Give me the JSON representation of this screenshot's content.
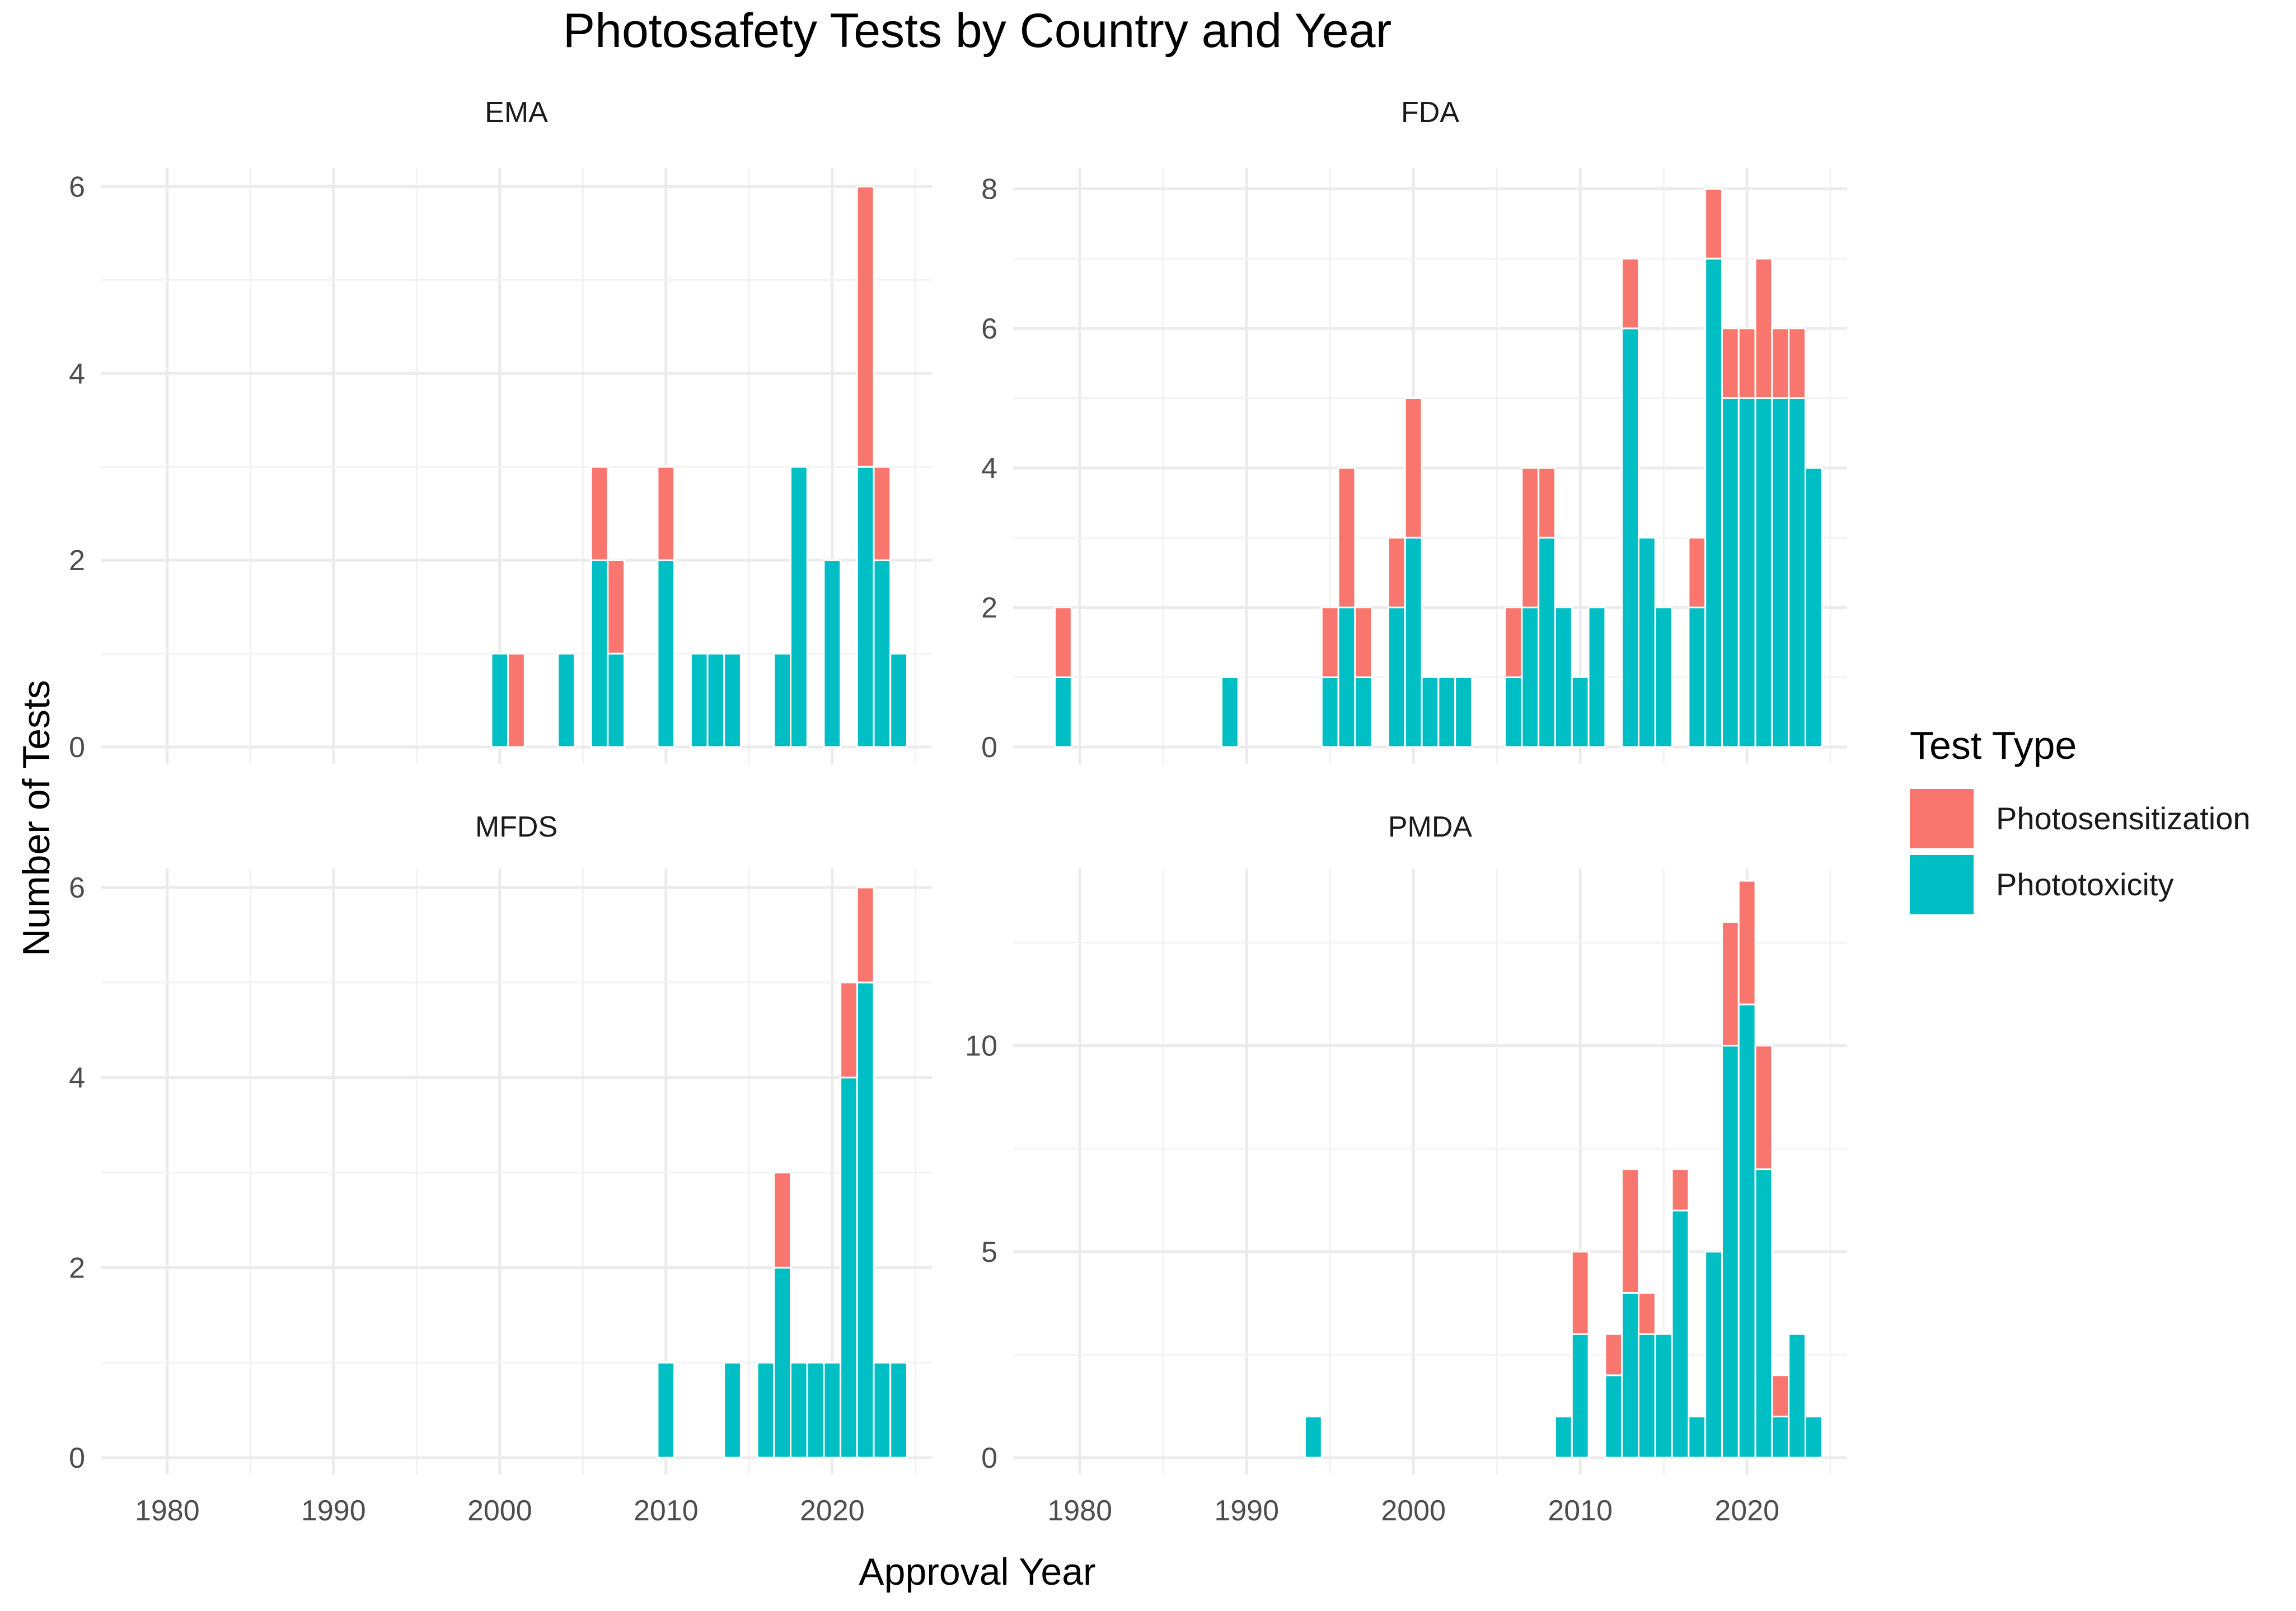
{
  "chart_data": {
    "type": "bar",
    "title": "Photosafety Tests by Country and Year",
    "xlabel": "Approval Year",
    "ylabel": "Number of Tests",
    "x_ticks": [
      1980,
      1990,
      2000,
      2010,
      2020
    ],
    "legend": {
      "title": "Test Type",
      "position": "right",
      "items": [
        {
          "label": "Photosensitization",
          "color": "#F8766D"
        },
        {
          "label": "Phototoxicity",
          "color": "#00BFC4"
        }
      ]
    },
    "grid": true,
    "xlim": [
      1976,
      2026
    ],
    "panels": [
      {
        "name": "EMA",
        "ylim": [
          0,
          6.2
        ],
        "y_ticks": [
          0,
          2,
          4,
          6
        ],
        "bars": [
          {
            "year": 2000,
            "phototoxicity": 1,
            "photosensitization": 0
          },
          {
            "year": 2001,
            "phototoxicity": 0,
            "photosensitization": 1
          },
          {
            "year": 2004,
            "phototoxicity": 1,
            "photosensitization": 0
          },
          {
            "year": 2006,
            "phototoxicity": 2,
            "photosensitization": 1
          },
          {
            "year": 2007,
            "phototoxicity": 1,
            "photosensitization": 1
          },
          {
            "year": 2010,
            "phototoxicity": 2,
            "photosensitization": 1
          },
          {
            "year": 2012,
            "phototoxicity": 1,
            "photosensitization": 0
          },
          {
            "year": 2013,
            "phototoxicity": 1,
            "photosensitization": 0
          },
          {
            "year": 2014,
            "phototoxicity": 1,
            "photosensitization": 0
          },
          {
            "year": 2017,
            "phototoxicity": 1,
            "photosensitization": 0
          },
          {
            "year": 2018,
            "phototoxicity": 3,
            "photosensitization": 0
          },
          {
            "year": 2020,
            "phototoxicity": 2,
            "photosensitization": 0
          },
          {
            "year": 2022,
            "phototoxicity": 3,
            "photosensitization": 3
          },
          {
            "year": 2023,
            "phototoxicity": 2,
            "photosensitization": 1
          },
          {
            "year": 2024,
            "phototoxicity": 1,
            "photosensitization": 0
          }
        ]
      },
      {
        "name": "FDA",
        "ylim": [
          0,
          8.3
        ],
        "y_ticks": [
          0,
          2,
          4,
          6,
          8
        ],
        "bars": [
          {
            "year": 1979,
            "phototoxicity": 1,
            "photosensitization": 1
          },
          {
            "year": 1989,
            "phototoxicity": 1,
            "photosensitization": 0
          },
          {
            "year": 1995,
            "phototoxicity": 1,
            "photosensitization": 1
          },
          {
            "year": 1996,
            "phototoxicity": 2,
            "photosensitization": 2
          },
          {
            "year": 1997,
            "phototoxicity": 1,
            "photosensitization": 1
          },
          {
            "year": 1999,
            "phototoxicity": 2,
            "photosensitization": 1
          },
          {
            "year": 2000,
            "phototoxicity": 3,
            "photosensitization": 2
          },
          {
            "year": 2001,
            "phototoxicity": 1,
            "photosensitization": 0
          },
          {
            "year": 2002,
            "phototoxicity": 1,
            "photosensitization": 0
          },
          {
            "year": 2003,
            "phototoxicity": 1,
            "photosensitization": 0
          },
          {
            "year": 2006,
            "phototoxicity": 1,
            "photosensitization": 1
          },
          {
            "year": 2007,
            "phototoxicity": 2,
            "photosensitization": 2
          },
          {
            "year": 2008,
            "phototoxicity": 3,
            "photosensitization": 1
          },
          {
            "year": 2009,
            "phototoxicity": 2,
            "photosensitization": 0
          },
          {
            "year": 2010,
            "phototoxicity": 1,
            "photosensitization": 0
          },
          {
            "year": 2011,
            "phototoxicity": 2,
            "photosensitization": 0
          },
          {
            "year": 2013,
            "phototoxicity": 6,
            "photosensitization": 1
          },
          {
            "year": 2014,
            "phototoxicity": 3,
            "photosensitization": 0
          },
          {
            "year": 2015,
            "phototoxicity": 2,
            "photosensitization": 0
          },
          {
            "year": 2017,
            "phototoxicity": 2,
            "photosensitization": 1
          },
          {
            "year": 2018,
            "phototoxicity": 7,
            "photosensitization": 1
          },
          {
            "year": 2019,
            "phototoxicity": 5,
            "photosensitization": 1
          },
          {
            "year": 2020,
            "phototoxicity": 5,
            "photosensitization": 1
          },
          {
            "year": 2021,
            "phototoxicity": 5,
            "photosensitization": 2
          },
          {
            "year": 2022,
            "phototoxicity": 5,
            "photosensitization": 1
          },
          {
            "year": 2023,
            "phototoxicity": 5,
            "photosensitization": 1
          },
          {
            "year": 2024,
            "phototoxicity": 4,
            "photosensitization": 0
          }
        ]
      },
      {
        "name": "MFDS",
        "ylim": [
          0,
          6.2
        ],
        "y_ticks": [
          0,
          2,
          4,
          6
        ],
        "bars": [
          {
            "year": 2010,
            "phototoxicity": 1,
            "photosensitization": 0
          },
          {
            "year": 2014,
            "phototoxicity": 1,
            "photosensitization": 0
          },
          {
            "year": 2016,
            "phototoxicity": 1,
            "photosensitization": 0
          },
          {
            "year": 2017,
            "phototoxicity": 2,
            "photosensitization": 1
          },
          {
            "year": 2018,
            "phototoxicity": 1,
            "photosensitization": 0
          },
          {
            "year": 2019,
            "phototoxicity": 1,
            "photosensitization": 0
          },
          {
            "year": 2020,
            "phototoxicity": 1,
            "photosensitization": 0
          },
          {
            "year": 2021,
            "phototoxicity": 4,
            "photosensitization": 1
          },
          {
            "year": 2022,
            "phototoxicity": 5,
            "photosensitization": 1
          },
          {
            "year": 2023,
            "phototoxicity": 1,
            "photosensitization": 0
          },
          {
            "year": 2024,
            "phototoxicity": 1,
            "photosensitization": 0
          }
        ]
      },
      {
        "name": "PMDA",
        "ylim": [
          0,
          14.3
        ],
        "y_ticks": [
          0,
          5,
          10
        ],
        "bars": [
          {
            "year": 1994,
            "phototoxicity": 1,
            "photosensitization": 0
          },
          {
            "year": 2009,
            "phototoxicity": 1,
            "photosensitization": 0
          },
          {
            "year": 2010,
            "phototoxicity": 3,
            "photosensitization": 2
          },
          {
            "year": 2012,
            "phototoxicity": 2,
            "photosensitization": 1
          },
          {
            "year": 2013,
            "phototoxicity": 4,
            "photosensitization": 3
          },
          {
            "year": 2014,
            "phototoxicity": 3,
            "photosensitization": 1
          },
          {
            "year": 2015,
            "phototoxicity": 3,
            "photosensitization": 0
          },
          {
            "year": 2016,
            "phototoxicity": 6,
            "photosensitization": 1
          },
          {
            "year": 2017,
            "phototoxicity": 1,
            "photosensitization": 0
          },
          {
            "year": 2018,
            "phototoxicity": 5,
            "photosensitization": 0
          },
          {
            "year": 2019,
            "phototoxicity": 10,
            "photosensitization": 3
          },
          {
            "year": 2020,
            "phototoxicity": 11,
            "photosensitization": 3
          },
          {
            "year": 2021,
            "phototoxicity": 7,
            "photosensitization": 3
          },
          {
            "year": 2022,
            "phototoxicity": 1,
            "photosensitization": 1
          },
          {
            "year": 2023,
            "phototoxicity": 3,
            "photosensitization": 0
          },
          {
            "year": 2024,
            "phototoxicity": 1,
            "photosensitization": 0
          }
        ]
      }
    ]
  }
}
